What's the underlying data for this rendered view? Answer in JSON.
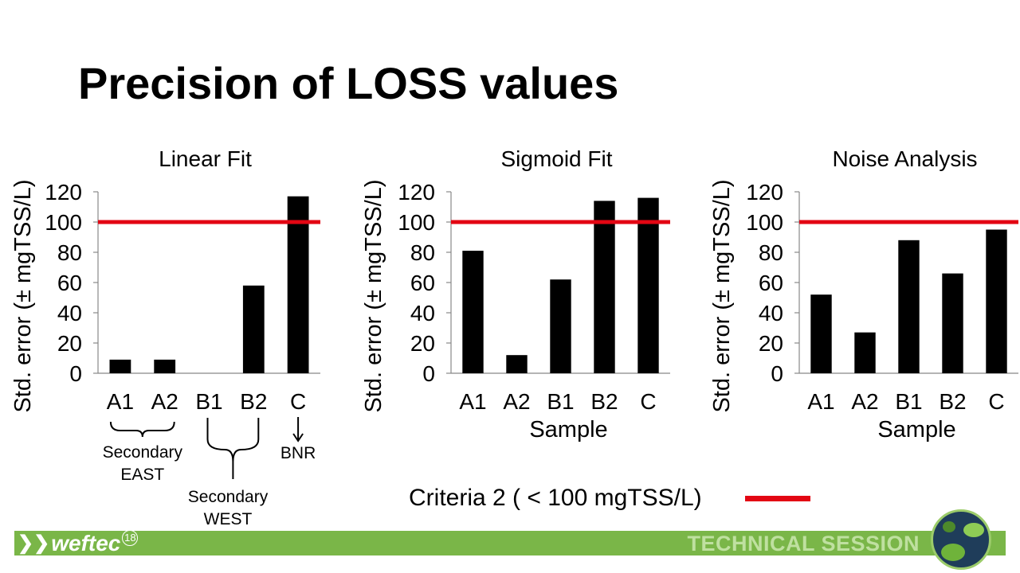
{
  "slide_title": "Precision of LOSS values",
  "chart_data": [
    {
      "type": "bar",
      "title": "Linear Fit",
      "xlabel": "",
      "ylabel": "Std. error (± mgTSS/L)",
      "categories": [
        "A1",
        "A2",
        "B1",
        "B2",
        "C"
      ],
      "values": [
        9,
        9,
        0,
        58,
        117
      ],
      "ylim": [
        0,
        120
      ],
      "yticks": [
        0,
        20,
        40,
        60,
        80,
        100,
        120
      ],
      "reference_line": 100,
      "grid": false
    },
    {
      "type": "bar",
      "title": "Sigmoid Fit",
      "xlabel": "Sample",
      "ylabel": "Std. error (± mgTSS/L)",
      "categories": [
        "A1",
        "A2",
        "B1",
        "B2",
        "C"
      ],
      "values": [
        81,
        12,
        62,
        114,
        116
      ],
      "ylim": [
        0,
        120
      ],
      "yticks": [
        0,
        20,
        40,
        60,
        80,
        100,
        120
      ],
      "reference_line": 100,
      "grid": false
    },
    {
      "type": "bar",
      "title": "Noise Analysis",
      "xlabel": "Sample",
      "ylabel": "Std. error (± mgTSS/L)",
      "categories": [
        "A1",
        "A2",
        "B1",
        "B2",
        "C"
      ],
      "values": [
        52,
        27,
        88,
        66,
        95
      ],
      "ylim": [
        0,
        120
      ],
      "yticks": [
        0,
        20,
        40,
        60,
        80,
        100,
        120
      ],
      "reference_line": 100,
      "grid": false
    }
  ],
  "annotations": {
    "secondary_east": [
      "Secondary",
      "EAST"
    ],
    "secondary_west": [
      "Secondary",
      "WEST"
    ],
    "bnr": "BNR"
  },
  "legend": {
    "label": "Criteria 2 ( < 100 mgTSS/L)",
    "color": "#e30613"
  },
  "footer": {
    "brand": "weftec",
    "brand_superscript": "18",
    "session": "TECHNICAL SESSION",
    "bar_color": "#7ab648"
  },
  "colors": {
    "bar": "#000000",
    "reference": "#e30613"
  }
}
